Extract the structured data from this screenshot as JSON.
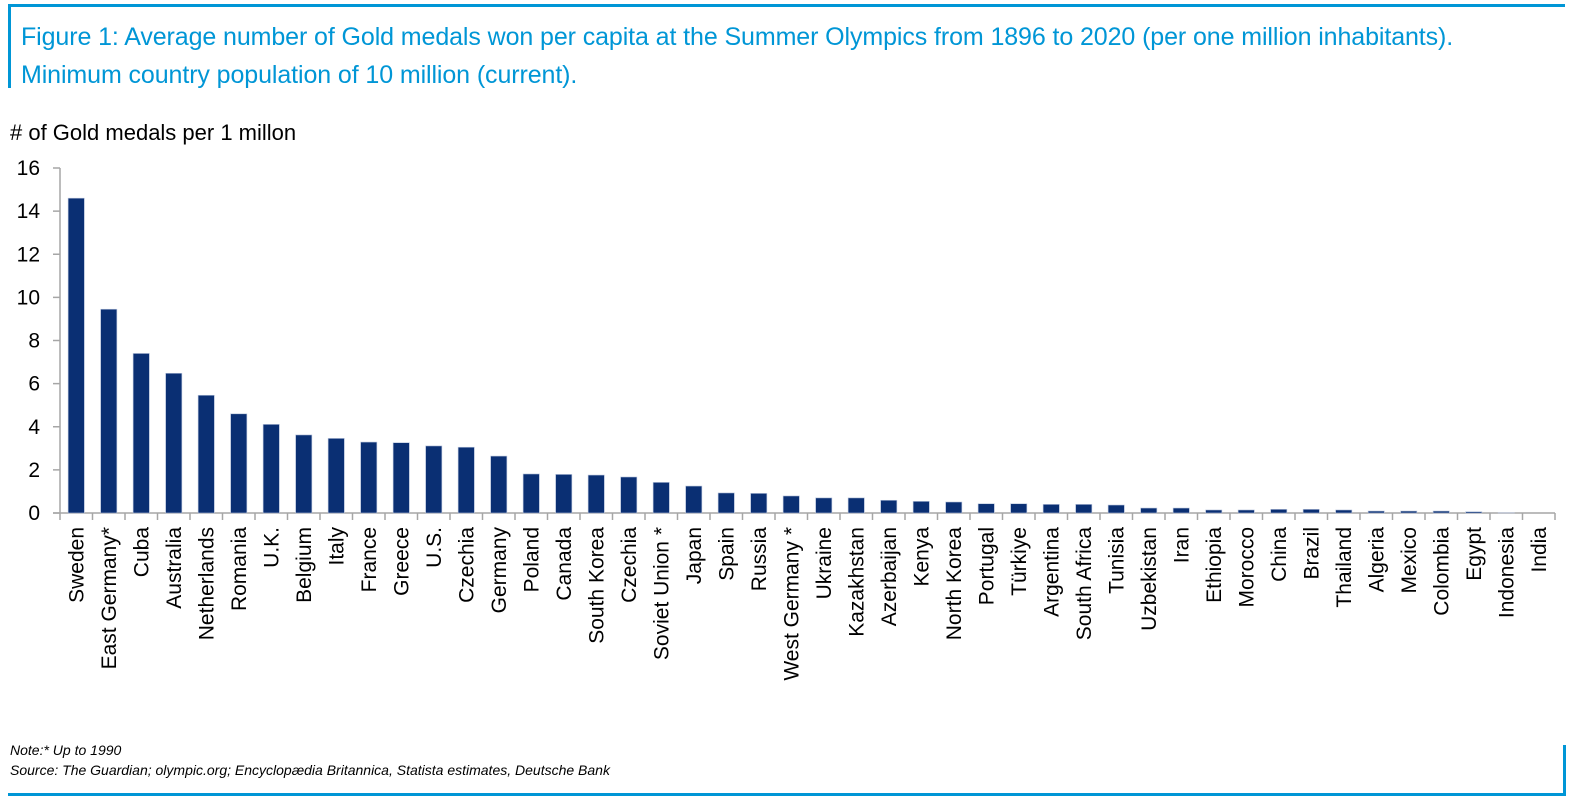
{
  "figure": {
    "title": "Figure 1: Average number of Gold medals won per capita at the Summer Olympics from 1896 to 2020 (per one million inhabitants). Minimum country population of 10 million (current).",
    "note": "Note:* Up to 1990",
    "source": "Source: The Guardian; olympic.org; Encyclopædia Britannica, Statista estimates, Deutsche Bank",
    "accent_color": "#0096d6",
    "bar_color": "#0a2f73"
  },
  "chart_data": {
    "type": "bar",
    "title": "Average number of Gold medals won per capita at the Summer Olympics from 1896 to 2020 (per one million inhabitants)",
    "xlabel": "",
    "ylabel": "# of Gold medals per 1 millon",
    "ylim": [
      0,
      16
    ],
    "yticks": [
      0,
      2,
      4,
      6,
      8,
      10,
      12,
      14,
      16
    ],
    "grid": false,
    "legend": "none",
    "categories": [
      "Sweden",
      "East Germany*",
      "Cuba",
      "Australia",
      "Netherlands",
      "Romania",
      "U.K.",
      "Belgium",
      "Italy",
      "France",
      "Greece",
      "U.S.",
      "Czechia",
      "Germany",
      "Poland",
      "Canada",
      "South Korea",
      "Czechia",
      "Soviet Union *",
      "Japan",
      "Spain",
      "Russia",
      "West Germany *",
      "Ukraine",
      "Kazakhstan",
      "Azerbaijan",
      "Kenya",
      "North Korea",
      "Portugal",
      "Türkiye",
      "Argentina",
      "South Africa",
      "Tunisia",
      "Uzbekistan",
      "Iran",
      "Ethiopia",
      "Morocco",
      "China",
      "Brazil",
      "Thailand",
      "Algeria",
      "Mexico",
      "Colombia",
      "Egypt",
      "Indonesia",
      "India"
    ],
    "values": [
      14.6,
      9.45,
      7.4,
      6.48,
      5.46,
      4.6,
      4.11,
      3.62,
      3.46,
      3.29,
      3.26,
      3.11,
      3.05,
      2.64,
      1.81,
      1.79,
      1.76,
      1.67,
      1.42,
      1.25,
      0.93,
      0.91,
      0.79,
      0.7,
      0.7,
      0.59,
      0.54,
      0.51,
      0.43,
      0.43,
      0.4,
      0.4,
      0.37,
      0.23,
      0.23,
      0.14,
      0.14,
      0.17,
      0.17,
      0.14,
      0.09,
      0.09,
      0.09,
      0.06,
      0.01,
      0.0
    ]
  }
}
